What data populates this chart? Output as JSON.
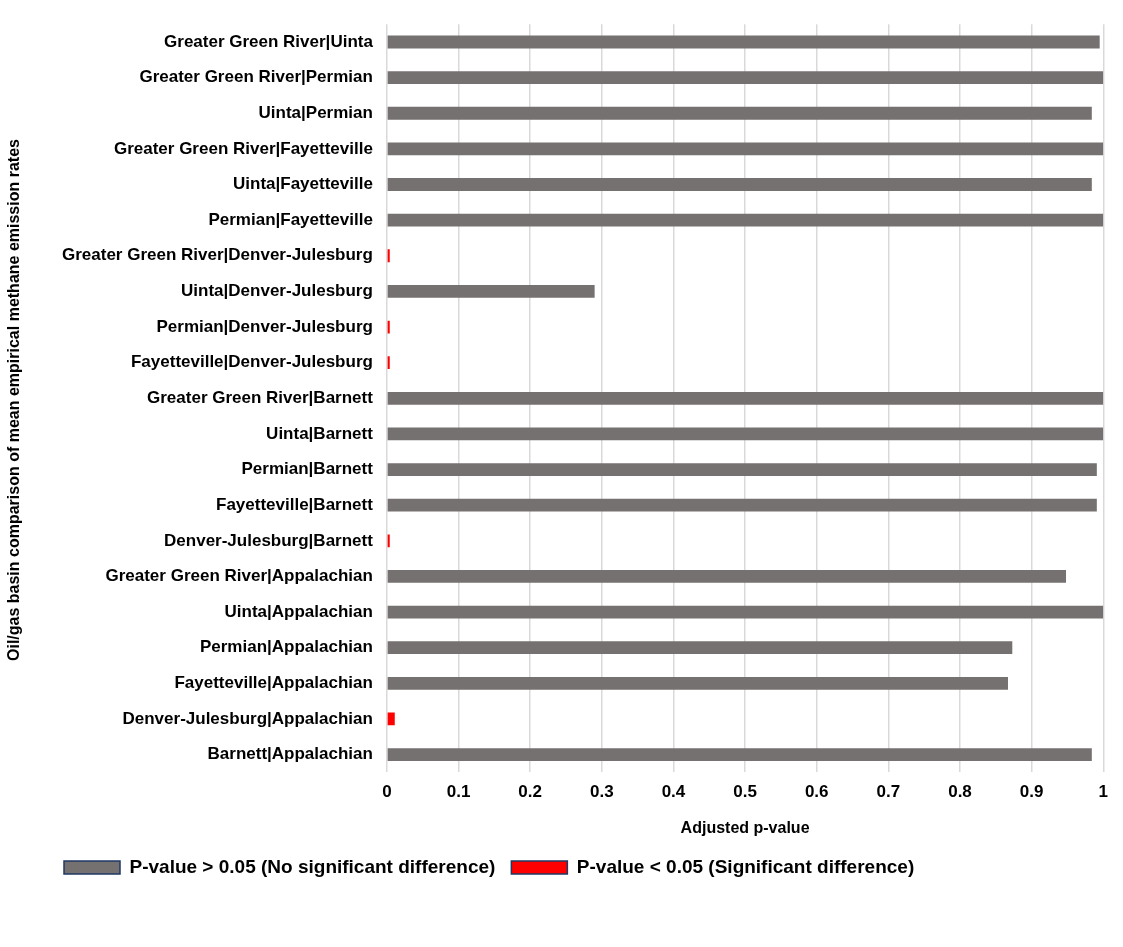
{
  "chart_data": {
    "type": "bar",
    "orientation": "horizontal",
    "xlabel": "Adjusted p-value",
    "ylabel": "Oil/gas basin comparison of mean empirical methane emission rates",
    "categories": [
      "Greater Green River|Uinta",
      "Greater Green River|Permian",
      "Uinta|Permian",
      "Greater Green River|Fayetteville",
      "Uinta|Fayetteville",
      "Permian|Fayetteville",
      "Greater Green River|Denver-Julesburg",
      "Uinta|Denver-Julesburg",
      "Permian|Denver-Julesburg",
      "Fayetteville|Denver-Julesburg",
      "Greater Green River|Barnett",
      "Uinta|Barnett",
      "Permian|Barnett",
      "Fayetteville|Barnett",
      "Denver-Julesburg|Barnett",
      "Greater Green River|Appalachian",
      "Uinta|Appalachian",
      "Permian|Appalachian",
      "Fayetteville|Appalachian",
      "Denver-Julesburg|Appalachian",
      "Barnett|Appalachian"
    ],
    "series": [
      {
        "name": "P-value > 0.05 (No significant difference)",
        "color": "#767171",
        "values": [
          0.995,
          1,
          0.984,
          1,
          0.984,
          1,
          null,
          0.29,
          null,
          null,
          1,
          1,
          0.991,
          0.991,
          null,
          0.948,
          1,
          0.873,
          0.867,
          null,
          0.984
        ]
      },
      {
        "name": "P-value < 0.05 (Significant difference)",
        "color": "#ff0000",
        "values": [
          null,
          null,
          null,
          null,
          null,
          null,
          0.004,
          null,
          0.004,
          0.004,
          null,
          null,
          null,
          null,
          0.004,
          null,
          null,
          null,
          null,
          0.011,
          null
        ]
      }
    ],
    "xlim": [
      0,
      1
    ],
    "xticks": [
      0,
      0.1,
      0.2,
      0.3,
      0.4,
      0.5,
      0.6,
      0.7,
      0.8,
      0.9,
      1
    ],
    "grid": "x",
    "legend": "bottom left"
  }
}
